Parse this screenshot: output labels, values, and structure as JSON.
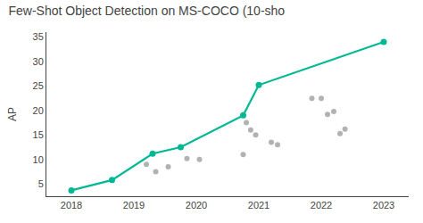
{
  "chart_data": {
    "type": "line",
    "title": "Few-Shot Object Detection on MS-COCO (10-sho",
    "ylabel": "AP",
    "xlim": [
      2017.6,
      2023.4
    ],
    "ylim": [
      2.5,
      36
    ],
    "xticks": [
      2018,
      2019,
      2020,
      2021,
      2022,
      2023
    ],
    "yticks": [
      5,
      10,
      15,
      20,
      25,
      30,
      35
    ],
    "grid": false,
    "series": [
      {
        "type": "scatter",
        "color": "#AAAAAA",
        "marker": "circle",
        "x": [
          2019.2,
          2019.35,
          2019.55,
          2019.85,
          2020.05,
          2020.75,
          2020.8,
          2020.87,
          2020.95,
          2021.2,
          2021.3,
          2021.85,
          2022.0,
          2022.1,
          2022.2,
          2022.3,
          2022.38
        ],
        "values": [
          9.0,
          7.5,
          8.5,
          10.2,
          10.0,
          11.0,
          17.5,
          16.0,
          15.0,
          13.5,
          13.0,
          22.5,
          22.5,
          19.2,
          19.8,
          15.3,
          16.2
        ]
      },
      {
        "type": "line",
        "color": "#00B894",
        "marker": "circle",
        "x": [
          2018.0,
          2018.65,
          2019.3,
          2019.75,
          2020.75,
          2021.0,
          2023.0
        ],
        "values": [
          3.7,
          5.8,
          11.2,
          12.5,
          19.0,
          25.2,
          34.0
        ]
      }
    ]
  }
}
